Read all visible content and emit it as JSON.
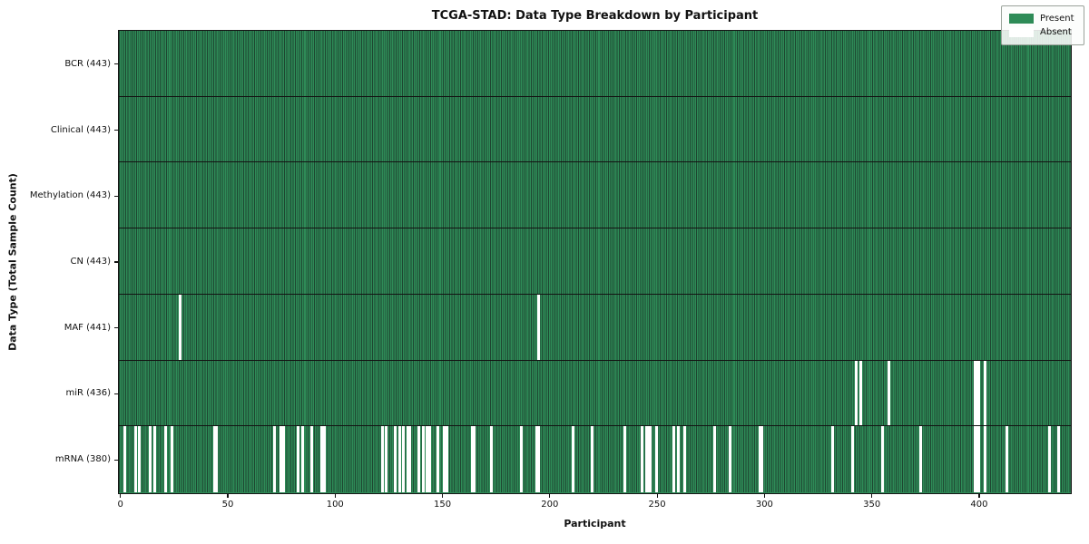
{
  "title": "TCGA-STAD: Data Type Breakdown by Participant",
  "xlabel": "Participant",
  "ylabel": "Data Type (Total Sample Count)",
  "legend": {
    "present_label": "Present",
    "absent_label": "Absent"
  },
  "colors": {
    "present": "#2e8b57",
    "present_edge": "#1e4631",
    "absent": "#ffffff",
    "separator": "#131313",
    "legend_bg": "#f2f5f2"
  },
  "chart_data": {
    "type": "heatmap",
    "title": "TCGA-STAD: Data Type Breakdown by Participant",
    "xlabel": "Participant",
    "ylabel": "Data Type (Total Sample Count)",
    "legend_entries": [
      "Present",
      "Absent"
    ],
    "legend_position": "upper right",
    "grid": false,
    "n_participants": 443,
    "x_range": [
      -0.5,
      442.5
    ],
    "x_ticks": [
      0,
      50,
      100,
      150,
      200,
      250,
      300,
      350,
      400
    ],
    "rows": [
      {
        "label": "BCR (443)",
        "data_type": "BCR",
        "present_count": 443,
        "absent_participants": []
      },
      {
        "label": "Clinical (443)",
        "data_type": "Clinical",
        "present_count": 443,
        "absent_participants": []
      },
      {
        "label": "Methylation (443)",
        "data_type": "Methylation",
        "present_count": 443,
        "absent_participants": []
      },
      {
        "label": "CN (443)",
        "data_type": "CN",
        "present_count": 443,
        "absent_participants": []
      },
      {
        "label": "MAF (441)",
        "data_type": "MAF",
        "present_count": 441,
        "absent_participants": [
          28,
          195
        ]
      },
      {
        "label": "miR (436)",
        "data_type": "miR",
        "present_count": 436,
        "absent_participants": [
          343,
          345,
          358,
          398,
          399,
          400,
          403
        ]
      },
      {
        "label": "mRNA (380)",
        "data_type": "mRNA",
        "present_count": 380,
        "absent_participants": [
          2,
          7,
          9,
          14,
          16,
          21,
          24,
          44,
          45,
          72,
          75,
          76,
          83,
          85,
          89,
          94,
          95,
          122,
          124,
          128,
          130,
          132,
          134,
          135,
          139,
          141,
          143,
          144,
          148,
          151,
          152,
          164,
          165,
          173,
          187,
          194,
          195,
          211,
          220,
          235,
          243,
          245,
          246,
          247,
          250,
          258,
          260,
          263,
          277,
          284,
          298,
          299,
          332,
          341,
          355,
          373,
          398,
          399,
          400,
          403,
          413,
          433,
          437
        ]
      }
    ]
  }
}
